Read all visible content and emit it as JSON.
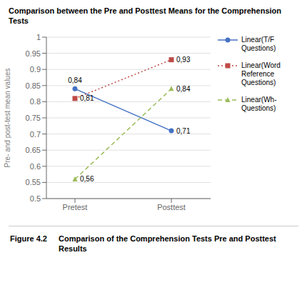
{
  "chart_data": {
    "type": "line",
    "title": "Comparison between the Pre and Posttest Means for the Comprehension Tests",
    "y_label": "Pre- and post-test mean values",
    "categories": [
      "Pretest",
      "Posttest"
    ],
    "series": [
      {
        "name": "Linear(T/F\nQuestions)",
        "color": "#4472C4",
        "line_style": "solid",
        "marker": "circle",
        "values": [
          0.84,
          0.71
        ],
        "value_labels": [
          "0,84",
          "0,71"
        ]
      },
      {
        "name": "Linear(Word\nReference\nQuestions)",
        "color": "#BE4B48",
        "line_style": "dotted",
        "marker": "square",
        "values": [
          0.81,
          0.93
        ],
        "value_labels": [
          "0,81",
          "0,93"
        ]
      },
      {
        "name": "Linear(Wh-\nQuestions)",
        "color": "#9BBB59",
        "line_style": "dashed",
        "marker": "triangle",
        "values": [
          0.56,
          0.84
        ],
        "value_labels": [
          "0,56",
          "0,84"
        ]
      }
    ],
    "data_labels": true,
    "ylim": [
      0.5,
      1.0
    ],
    "yticks": [
      0.5,
      0.55,
      0.6,
      0.65,
      0.7,
      0.75,
      0.8,
      0.85,
      0.9,
      0.95,
      1
    ],
    "grid": true,
    "legend": "right",
    "figure_label": "Figure 4.2",
    "caption": "Comparison of the Comprehension Tests Pre and Posttest Results"
  }
}
